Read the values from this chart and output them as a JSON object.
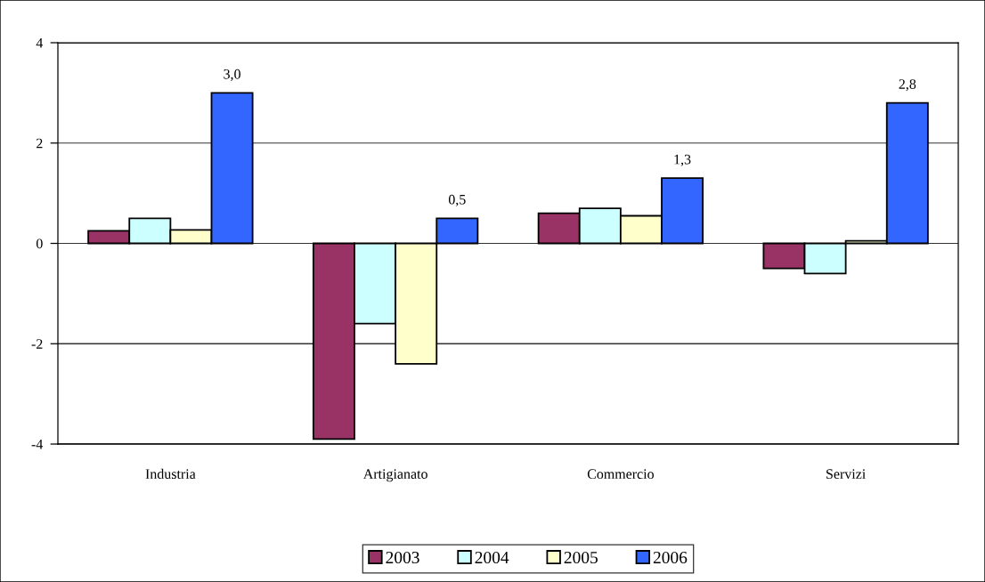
{
  "chart_data": {
    "type": "bar",
    "categories": [
      "Industria",
      "Artigianato",
      "Commercio",
      "Servizi"
    ],
    "series": [
      {
        "name": "2003",
        "color": "#993366",
        "values": [
          0.25,
          -3.9,
          0.6,
          -0.5
        ]
      },
      {
        "name": "2004",
        "color": "#ccffff",
        "values": [
          0.5,
          -1.6,
          0.7,
          -0.6
        ]
      },
      {
        "name": "2005",
        "color": "#ffffcc",
        "values": [
          0.27,
          -2.4,
          0.55,
          0.05
        ]
      },
      {
        "name": "2006",
        "color": "#3366ff",
        "values": [
          3.0,
          0.5,
          1.3,
          2.8
        ],
        "value_labels": [
          "3,0",
          "0,5",
          "1,3",
          "2,8"
        ]
      }
    ],
    "ylim": [
      -4,
      4
    ],
    "yticks": [
      -4,
      -2,
      0,
      2,
      4
    ],
    "grid": "y",
    "legend": "bottom"
  }
}
